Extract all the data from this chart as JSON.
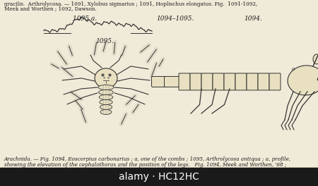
{
  "page_bg": "#f0ead8",
  "top_text_line1": "gracilis.  Arthrolycosa. — 1091, Xylobus sigmarius ; 1091, Hoplischus elongatus. Fig.  1091-1092,",
  "top_text_line2": "Meek and Worthen ; 1092, Dawson.",
  "label_1095a": "1095 a.",
  "label_1094_1095": "1094–1095.",
  "label_1094": "1094.",
  "label_1095": "1095.",
  "bottom_text_line1": "Arachnida. — Fig. 1094, Eoscorpius carbonarius ; a, one of the combs ; 1095, Arthrolycosa antiqua ; a, profile,",
  "bottom_text_line2": "showing the elevation of the cephalothorax and the position of the legs.   Fig. 1094, Meek and Worthen, ’68 ;",
  "watermark_text": "alamy · HC12HC",
  "watermark_bg": "#1a1a1a",
  "line_color": "#333333",
  "fill_light": "#e8e0c0",
  "fill_mid": "#d8d0b0"
}
